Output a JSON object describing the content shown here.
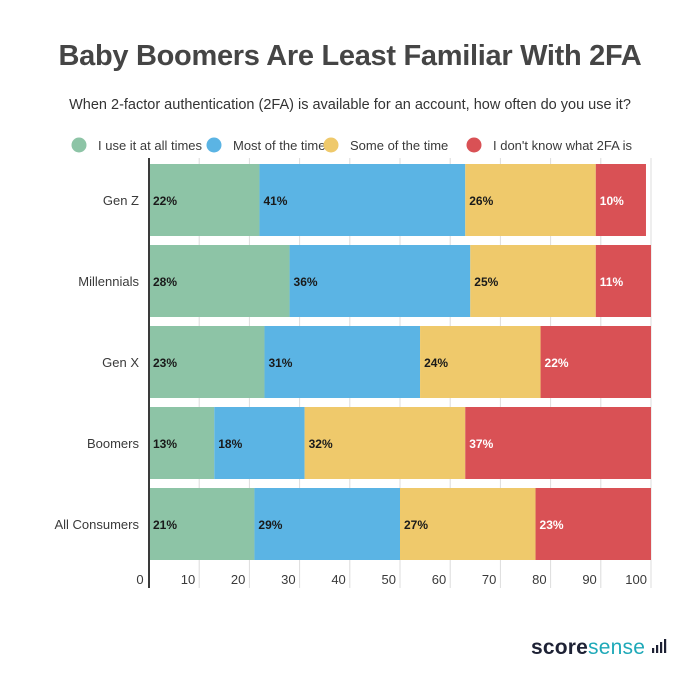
{
  "chart_data": {
    "type": "bar",
    "orientation": "horizontal",
    "stacked": true,
    "title": "Baby Boomers Are Least Familiar With 2FA",
    "subtitle": "When 2-factor authentication (2FA) is available for an account, how often do you use it?",
    "xlabel": "",
    "ylabel": "",
    "xlim": [
      0,
      100
    ],
    "x_ticks": [
      "0",
      "10",
      "20",
      "30",
      "40",
      "50",
      "60",
      "70",
      "80",
      "90",
      "100"
    ],
    "grid": true,
    "legend_position": "top",
    "categories": [
      "Gen Z",
      "Millennials",
      "Gen X",
      "Boomers",
      "All Consumers"
    ],
    "series": [
      {
        "name": "I use it at all times",
        "color": "#8dc4a6",
        "label_color": "#1a1a1a",
        "values": [
          22,
          28,
          23,
          13,
          21
        ],
        "labels": [
          "22%",
          "28%",
          "23%",
          "13%",
          "21%"
        ]
      },
      {
        "name": "Most of the time",
        "color": "#5bb4e4",
        "label_color": "#1a1a1a",
        "values": [
          41,
          36,
          31,
          18,
          29
        ],
        "labels": [
          "41%",
          "36%",
          "31%",
          "18%",
          "29%"
        ]
      },
      {
        "name": "Some of the time",
        "color": "#efc96b",
        "label_color": "#1a1a1a",
        "values": [
          26,
          25,
          24,
          32,
          27
        ],
        "labels": [
          "26%",
          "25%",
          "24%",
          "32%",
          "27%"
        ]
      },
      {
        "name": "I don't know what 2FA is",
        "color": "#d95155",
        "label_color": "#ffffff",
        "values": [
          10,
          11,
          22,
          37,
          23
        ],
        "labels": [
          "10%",
          "11%",
          "22%",
          "37%",
          "23%"
        ]
      }
    ]
  },
  "brand": {
    "logo_part1": "score",
    "logo_part2": "sense",
    "colors": {
      "dark": "#1e2235",
      "teal": "#1fa9b8"
    }
  }
}
